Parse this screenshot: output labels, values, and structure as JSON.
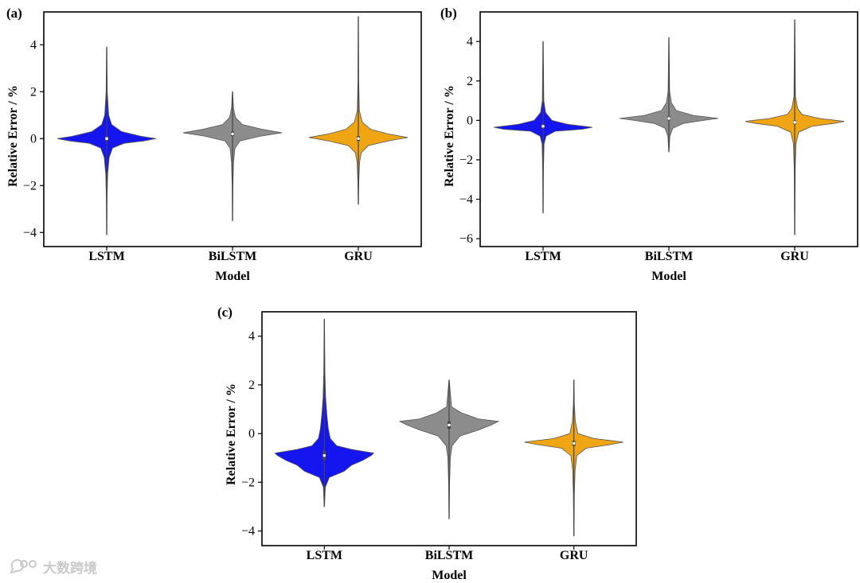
{
  "chart_data": [
    {
      "panel_label": "(a)",
      "type": "violin",
      "xlabel": "Model",
      "ylabel": "Relative Error / %",
      "ylim": [
        -4.6,
        5.4
      ],
      "yticks": [
        -4,
        -2,
        0,
        2,
        4
      ],
      "categories": [
        "LSTM",
        "BiLSTM",
        "GRU"
      ],
      "colors": [
        "#1515f0",
        "#8c8c8c",
        "#f0a515"
      ],
      "series": [
        {
          "name": "LSTM",
          "min": -4.1,
          "max": 3.9,
          "median": 0.0,
          "q1": -0.1,
          "q3": 0.1,
          "profile": [
            [
              -4.1,
              0.003
            ],
            [
              -2.5,
              0.008
            ],
            [
              -1.5,
              0.02
            ],
            [
              -0.8,
              0.05
            ],
            [
              -0.4,
              0.12
            ],
            [
              -0.2,
              0.35
            ],
            [
              -0.1,
              0.75
            ],
            [
              0.0,
              1.0
            ],
            [
              0.1,
              0.7
            ],
            [
              0.3,
              0.3
            ],
            [
              0.6,
              0.1
            ],
            [
              1.0,
              0.04
            ],
            [
              2.0,
              0.012
            ],
            [
              3.9,
              0.003
            ]
          ]
        },
        {
          "name": "BiLSTM",
          "min": -3.5,
          "max": 2.0,
          "median": 0.2,
          "q1": 0.1,
          "q3": 0.3,
          "profile": [
            [
              -3.5,
              0.003
            ],
            [
              -2.0,
              0.008
            ],
            [
              -1.0,
              0.02
            ],
            [
              -0.4,
              0.05
            ],
            [
              -0.1,
              0.15
            ],
            [
              0.1,
              0.55
            ],
            [
              0.25,
              1.0
            ],
            [
              0.4,
              0.6
            ],
            [
              0.6,
              0.2
            ],
            [
              0.9,
              0.06
            ],
            [
              1.3,
              0.02
            ],
            [
              2.0,
              0.003
            ]
          ]
        },
        {
          "name": "GRU",
          "min": -2.8,
          "max": 5.2,
          "median": 0.0,
          "q1": -0.1,
          "q3": 0.1,
          "profile": [
            [
              -2.8,
              0.003
            ],
            [
              -1.8,
              0.01
            ],
            [
              -1.0,
              0.025
            ],
            [
              -0.6,
              0.06
            ],
            [
              -0.3,
              0.2
            ],
            [
              -0.1,
              0.6
            ],
            [
              0.05,
              1.0
            ],
            [
              0.2,
              0.6
            ],
            [
              0.4,
              0.25
            ],
            [
              0.7,
              0.08
            ],
            [
              1.2,
              0.02
            ],
            [
              2.5,
              0.008
            ],
            [
              5.2,
              0.003
            ]
          ]
        }
      ]
    },
    {
      "panel_label": "(b)",
      "type": "violin",
      "xlabel": "Model",
      "ylabel": "Relative Error / %",
      "ylim": [
        -6.4,
        5.5
      ],
      "yticks": [
        -6,
        -4,
        -2,
        0,
        2,
        4
      ],
      "categories": [
        "LSTM",
        "BiLSTM",
        "GRU"
      ],
      "colors": [
        "#1515f0",
        "#8c8c8c",
        "#f0a515"
      ],
      "series": [
        {
          "name": "LSTM",
          "min": -4.7,
          "max": 4.0,
          "median": -0.3,
          "q1": -0.4,
          "q3": -0.2,
          "profile": [
            [
              -4.7,
              0.003
            ],
            [
              -2.5,
              0.008
            ],
            [
              -1.2,
              0.02
            ],
            [
              -0.8,
              0.06
            ],
            [
              -0.55,
              0.25
            ],
            [
              -0.45,
              0.8
            ],
            [
              -0.35,
              1.0
            ],
            [
              -0.2,
              0.5
            ],
            [
              0.0,
              0.18
            ],
            [
              0.4,
              0.05
            ],
            [
              1.0,
              0.015
            ],
            [
              4.0,
              0.003
            ]
          ]
        },
        {
          "name": "BiLSTM",
          "min": -1.6,
          "max": 4.2,
          "median": 0.1,
          "q1": 0.0,
          "q3": 0.2,
          "profile": [
            [
              -1.6,
              0.003
            ],
            [
              -0.8,
              0.02
            ],
            [
              -0.4,
              0.08
            ],
            [
              -0.15,
              0.3
            ],
            [
              0.0,
              0.7
            ],
            [
              0.1,
              1.0
            ],
            [
              0.25,
              0.5
            ],
            [
              0.5,
              0.15
            ],
            [
              0.9,
              0.05
            ],
            [
              1.5,
              0.015
            ],
            [
              4.2,
              0.003
            ]
          ]
        },
        {
          "name": "GRU",
          "min": -5.8,
          "max": 5.1,
          "median": -0.1,
          "q1": -0.2,
          "q3": 0.0,
          "profile": [
            [
              -5.8,
              0.003
            ],
            [
              -2.5,
              0.01
            ],
            [
              -1.2,
              0.025
            ],
            [
              -0.6,
              0.08
            ],
            [
              -0.3,
              0.35
            ],
            [
              -0.15,
              0.8
            ],
            [
              -0.05,
              1.0
            ],
            [
              0.1,
              0.5
            ],
            [
              0.3,
              0.15
            ],
            [
              0.6,
              0.06
            ],
            [
              1.2,
              0.015
            ],
            [
              5.1,
              0.003
            ]
          ]
        }
      ]
    },
    {
      "panel_label": "(c)",
      "type": "violin",
      "xlabel": "Model",
      "ylabel": "Relative Error / %",
      "ylim": [
        -4.6,
        5.0
      ],
      "yticks": [
        -4,
        -2,
        0,
        2,
        4
      ],
      "categories": [
        "LSTM",
        "BiLSTM",
        "GRU"
      ],
      "colors": [
        "#1515f0",
        "#8c8c8c",
        "#f0a515"
      ],
      "series": [
        {
          "name": "LSTM",
          "min": -3.0,
          "max": 4.7,
          "median": -0.9,
          "q1": -1.1,
          "q3": -0.7,
          "profile": [
            [
              -3.0,
              0.003
            ],
            [
              -2.2,
              0.02
            ],
            [
              -1.8,
              0.1
            ],
            [
              -1.55,
              0.4
            ],
            [
              -1.3,
              0.55
            ],
            [
              -1.1,
              0.78
            ],
            [
              -0.9,
              0.95
            ],
            [
              -0.8,
              1.0
            ],
            [
              -0.65,
              0.55
            ],
            [
              -0.5,
              0.25
            ],
            [
              -0.2,
              0.12
            ],
            [
              0.2,
              0.08
            ],
            [
              0.8,
              0.05
            ],
            [
              1.5,
              0.025
            ],
            [
              2.5,
              0.012
            ],
            [
              4.7,
              0.003
            ]
          ]
        },
        {
          "name": "BiLSTM",
          "min": -3.5,
          "max": 2.2,
          "median": 0.35,
          "q1": 0.2,
          "q3": 0.5,
          "profile": [
            [
              -3.5,
              0.003
            ],
            [
              -2.0,
              0.01
            ],
            [
              -1.0,
              0.025
            ],
            [
              -0.5,
              0.06
            ],
            [
              -0.1,
              0.22
            ],
            [
              0.15,
              0.6
            ],
            [
              0.35,
              0.85
            ],
            [
              0.5,
              1.0
            ],
            [
              0.6,
              0.6
            ],
            [
              0.85,
              0.25
            ],
            [
              1.1,
              0.05
            ],
            [
              2.2,
              0.003
            ]
          ]
        },
        {
          "name": "GRU",
          "min": -4.2,
          "max": 2.2,
          "median": -0.4,
          "q1": -0.5,
          "q3": -0.3,
          "profile": [
            [
              -4.2,
              0.003
            ],
            [
              -2.5,
              0.01
            ],
            [
              -1.5,
              0.025
            ],
            [
              -0.9,
              0.06
            ],
            [
              -0.6,
              0.25
            ],
            [
              -0.45,
              0.75
            ],
            [
              -0.35,
              1.0
            ],
            [
              -0.2,
              0.4
            ],
            [
              0.0,
              0.08
            ],
            [
              0.5,
              0.03
            ],
            [
              1.2,
              0.01
            ],
            [
              2.2,
              0.003
            ]
          ]
        }
      ]
    }
  ],
  "watermark": {
    "text": "大数跨境",
    "icon": "chat-bubble-icon"
  }
}
